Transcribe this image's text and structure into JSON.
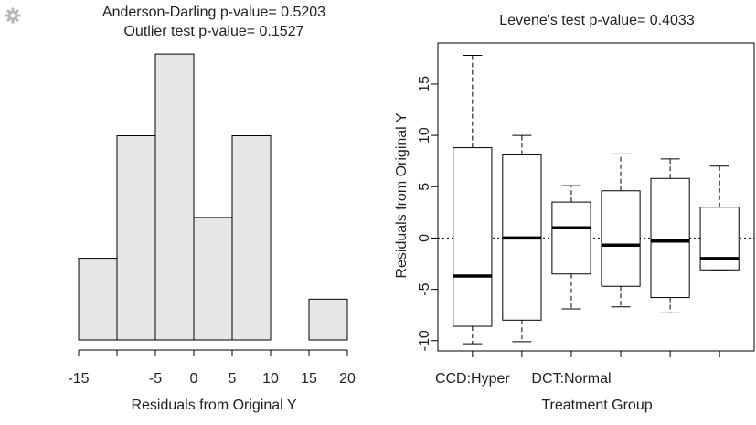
{
  "toolbar": {
    "gear_icon": "gear-icon"
  },
  "chart_data": [
    {
      "type": "bar",
      "title": "Anderson-Darling p-value= 0.5203",
      "subtitle": "Outlier test p-value= 0.1527",
      "xlabel": "Residuals from Original Y",
      "ylabel": "",
      "xlim": [
        -15,
        20
      ],
      "bin_edges": [
        -15,
        -10,
        -5,
        0,
        5,
        10,
        15,
        20
      ],
      "values": [
        2,
        5,
        7,
        3,
        5,
        0,
        1
      ],
      "x_ticks": [
        -15,
        -5,
        0,
        5,
        10,
        15,
        20
      ],
      "x_tick_labels": [
        "-15",
        "-5",
        "0",
        "5",
        "10",
        "15",
        "20"
      ],
      "fill_color": "#e6e6e6",
      "grid": false
    },
    {
      "type": "boxplot",
      "title": "Levene's test p-value= 0.4033",
      "xlabel": "Treatment Group",
      "ylabel": "Residuals from Original Y",
      "ylim": [
        -11,
        19
      ],
      "y_ticks": [
        -10,
        -5,
        0,
        5,
        10,
        15
      ],
      "y_tick_labels": [
        "-10",
        "-5",
        "0",
        "5",
        "10",
        "15"
      ],
      "x_tick_labels": [
        "CCD:Hyper",
        "",
        "DCT:Normal",
        "",
        "",
        ""
      ],
      "reference_line": 0,
      "boxes": [
        {
          "whisker_low": -10.3,
          "q1": -8.6,
          "median": -3.7,
          "q3": 8.8,
          "whisker_high": 17.8
        },
        {
          "whisker_low": -10.1,
          "q1": -8.0,
          "median": 0.0,
          "q3": 8.1,
          "whisker_high": 10.0
        },
        {
          "whisker_low": -6.9,
          "q1": -3.5,
          "median": 1.0,
          "q3": 3.5,
          "whisker_high": 5.1
        },
        {
          "whisker_low": -6.7,
          "q1": -4.7,
          "median": -0.7,
          "q3": 4.6,
          "whisker_high": 8.2
        },
        {
          "whisker_low": -7.3,
          "q1": -5.8,
          "median": -0.3,
          "q3": 5.8,
          "whisker_high": 7.7
        },
        {
          "whisker_low": -3.1,
          "q1": -3.1,
          "median": -2.0,
          "q3": 3.0,
          "whisker_high": 7.0
        }
      ],
      "grid": false
    }
  ]
}
